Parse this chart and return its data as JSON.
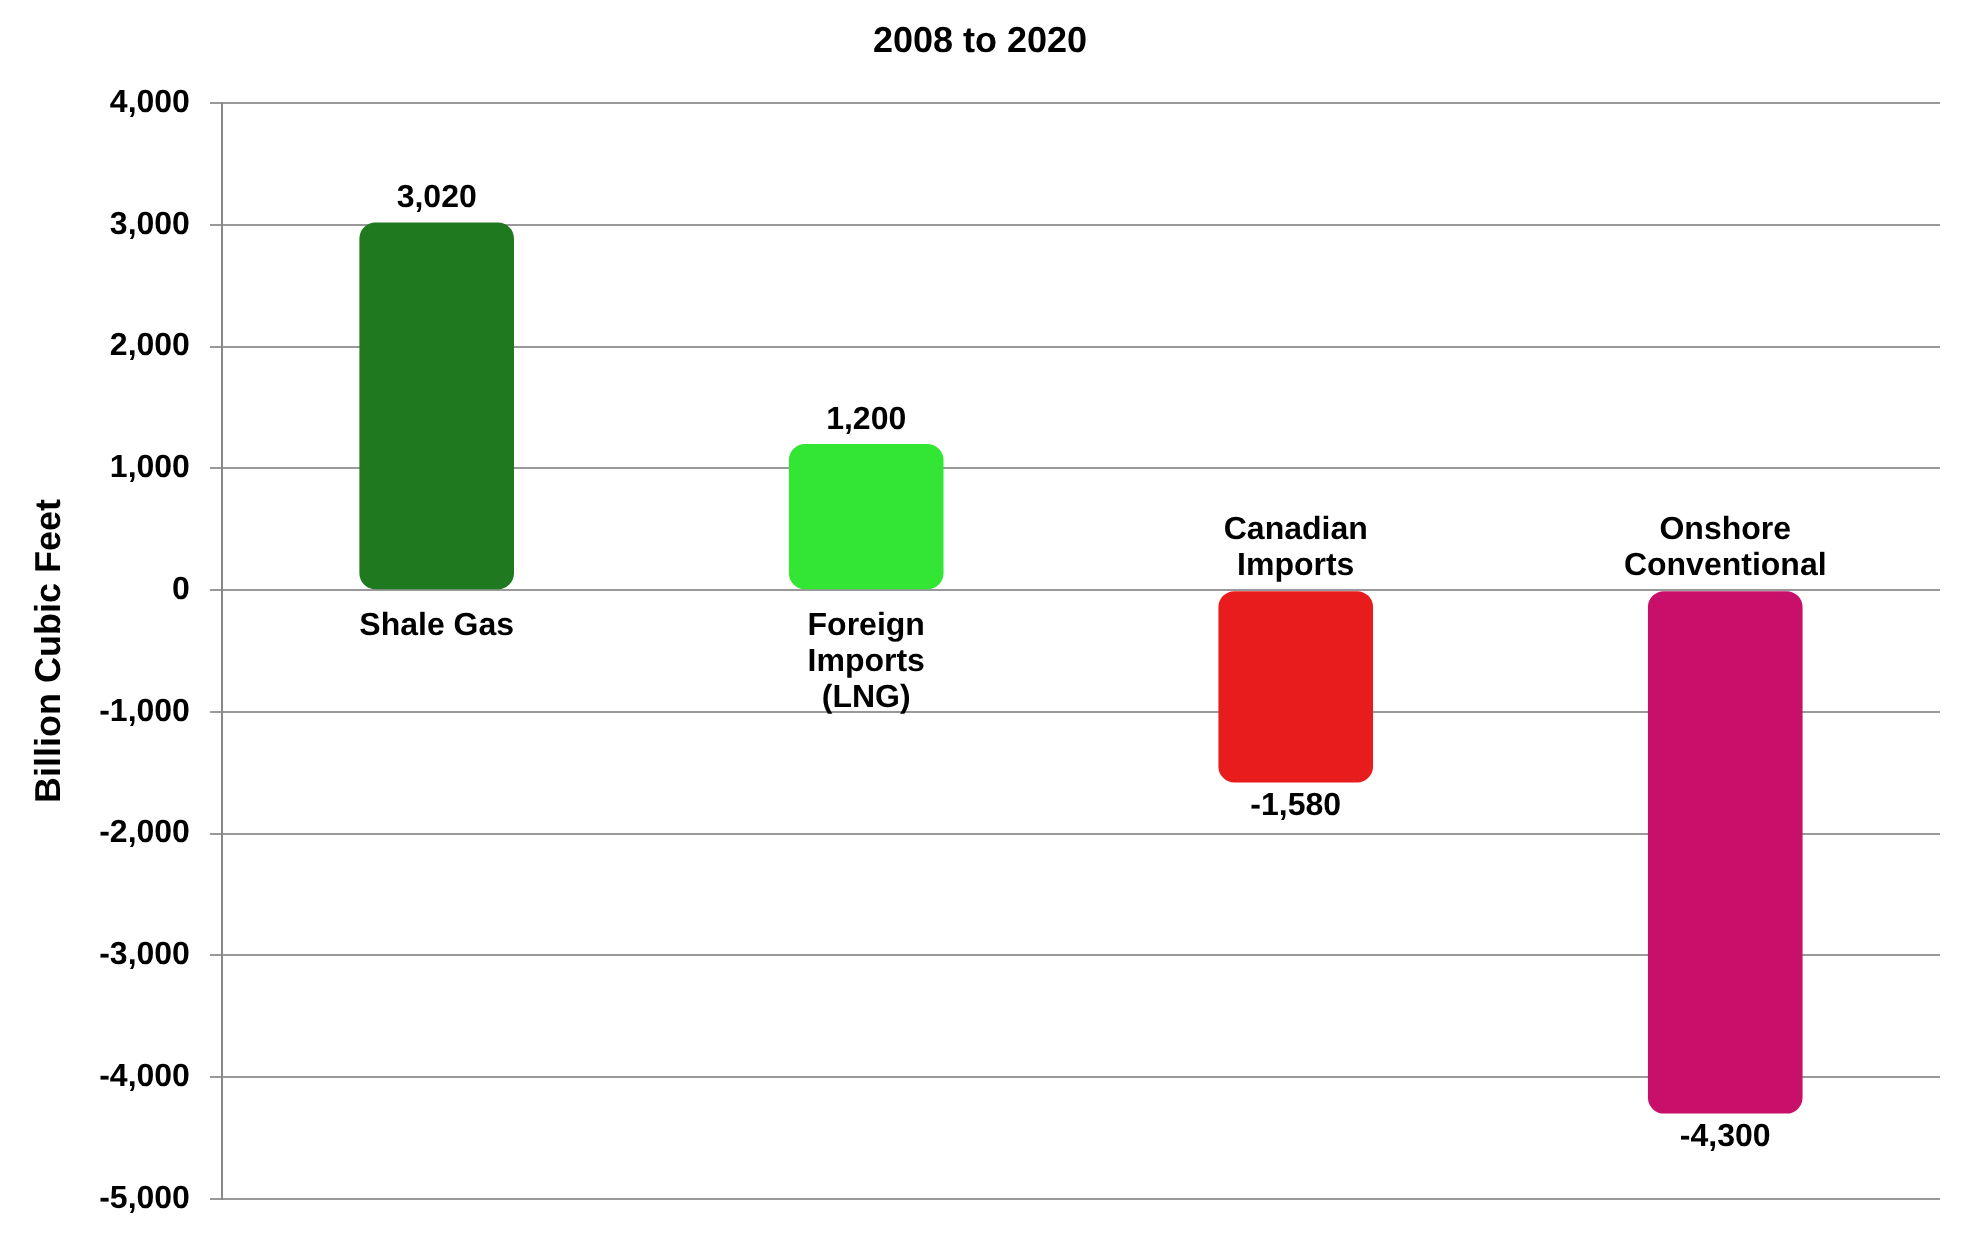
{
  "chart_data": {
    "type": "bar",
    "title": "2008 to 2020",
    "ylabel": "Billion Cubic Feet",
    "categories": [
      "Shale Gas",
      "Foreign Imports (LNG)",
      "Canadian Imports",
      "Onshore Conventional"
    ],
    "values": [
      3020,
      1200,
      -1580,
      -4300
    ],
    "colors": [
      "#1f7a1f",
      "#33e633",
      "#e81c1c",
      "#c8106a"
    ],
    "value_labels": [
      "3,020",
      "1,200",
      "-1,580",
      "-4,300"
    ],
    "ylim": [
      -5000,
      4000
    ],
    "yticks": [
      {
        "value": -5000,
        "label": "-5,000"
      },
      {
        "value": -4000,
        "label": "-4,000"
      },
      {
        "value": -3000,
        "label": "-3,000"
      },
      {
        "value": -2000,
        "label": "-2,000"
      },
      {
        "value": -1000,
        "label": "-1,000"
      },
      0,
      {
        "value": 1000,
        "label": "1,000"
      },
      {
        "value": 2000,
        "label": "2,000"
      },
      {
        "value": 3000,
        "label": "3,000"
      },
      {
        "value": 4000,
        "label": "4,000"
      }
    ],
    "grid": "y",
    "legend": false
  }
}
